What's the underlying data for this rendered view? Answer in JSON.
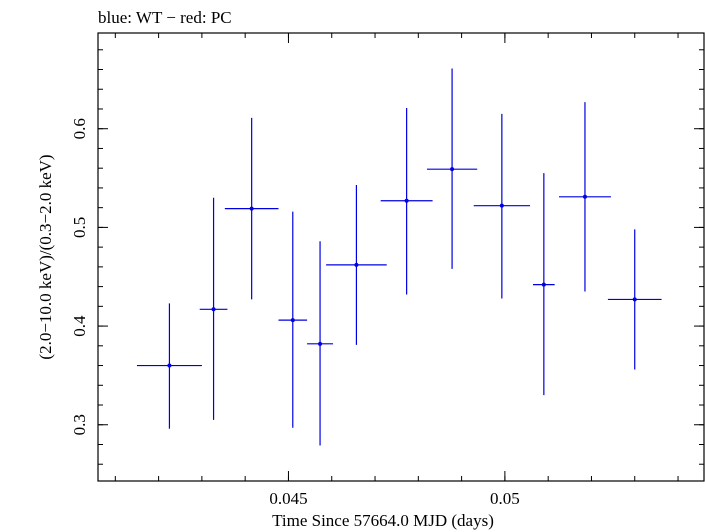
{
  "chart_data": {
    "type": "scatter",
    "title": "blue: WT − red: PC",
    "xlabel": "Time Since 57664.0 MJD (days)",
    "ylabel": "(2.0−10.0 keV)/(0.3−2.0 keV)",
    "xlim": [
      0.0406,
      0.0546
    ],
    "ylim": [
      0.243,
      0.697
    ],
    "x_ticks": [
      {
        "value": 0.045,
        "label": "0.045"
      },
      {
        "value": 0.05,
        "label": "0.05"
      }
    ],
    "y_ticks": [
      {
        "value": 0.3,
        "label": "0.3"
      },
      {
        "value": 0.4,
        "label": "0.4"
      },
      {
        "value": 0.5,
        "label": "0.5"
      },
      {
        "value": 0.6,
        "label": "0.6"
      }
    ],
    "x_minor_step": 0.001,
    "y_minor_step": 0.02,
    "grid": false,
    "series": [
      {
        "name": "WT",
        "color": "#0000e0",
        "points": [
          {
            "x": 0.04225,
            "xerr": 0.00075,
            "y": 0.36,
            "ylo": 0.296,
            "yhi": 0.423
          },
          {
            "x": 0.04327,
            "xerr": 0.00032,
            "y": 0.417,
            "ylo": 0.305,
            "yhi": 0.53
          },
          {
            "x": 0.04415,
            "xerr": 0.00062,
            "y": 0.519,
            "ylo": 0.427,
            "yhi": 0.611
          },
          {
            "x": 0.0451,
            "xerr": 0.00033,
            "y": 0.406,
            "ylo": 0.297,
            "yhi": 0.516
          },
          {
            "x": 0.04573,
            "xerr": 0.0003,
            "y": 0.382,
            "ylo": 0.279,
            "yhi": 0.486
          },
          {
            "x": 0.04657,
            "xerr": 0.0007,
            "y": 0.462,
            "ylo": 0.381,
            "yhi": 0.543
          },
          {
            "x": 0.04773,
            "xerr": 0.0006,
            "y": 0.527,
            "ylo": 0.432,
            "yhi": 0.621
          },
          {
            "x": 0.04878,
            "xerr": 0.00058,
            "y": 0.559,
            "ylo": 0.458,
            "yhi": 0.661
          },
          {
            "x": 0.04993,
            "xerr": 0.00065,
            "y": 0.522,
            "ylo": 0.428,
            "yhi": 0.615
          },
          {
            "x": 0.0509,
            "xerr": 0.00025,
            "y": 0.442,
            "ylo": 0.33,
            "yhi": 0.555
          },
          {
            "x": 0.05185,
            "xerr": 0.0006,
            "y": 0.531,
            "ylo": 0.435,
            "yhi": 0.627
          },
          {
            "x": 0.053,
            "xerr": 0.00062,
            "y": 0.427,
            "ylo": 0.356,
            "yhi": 0.498
          }
        ]
      }
    ]
  }
}
